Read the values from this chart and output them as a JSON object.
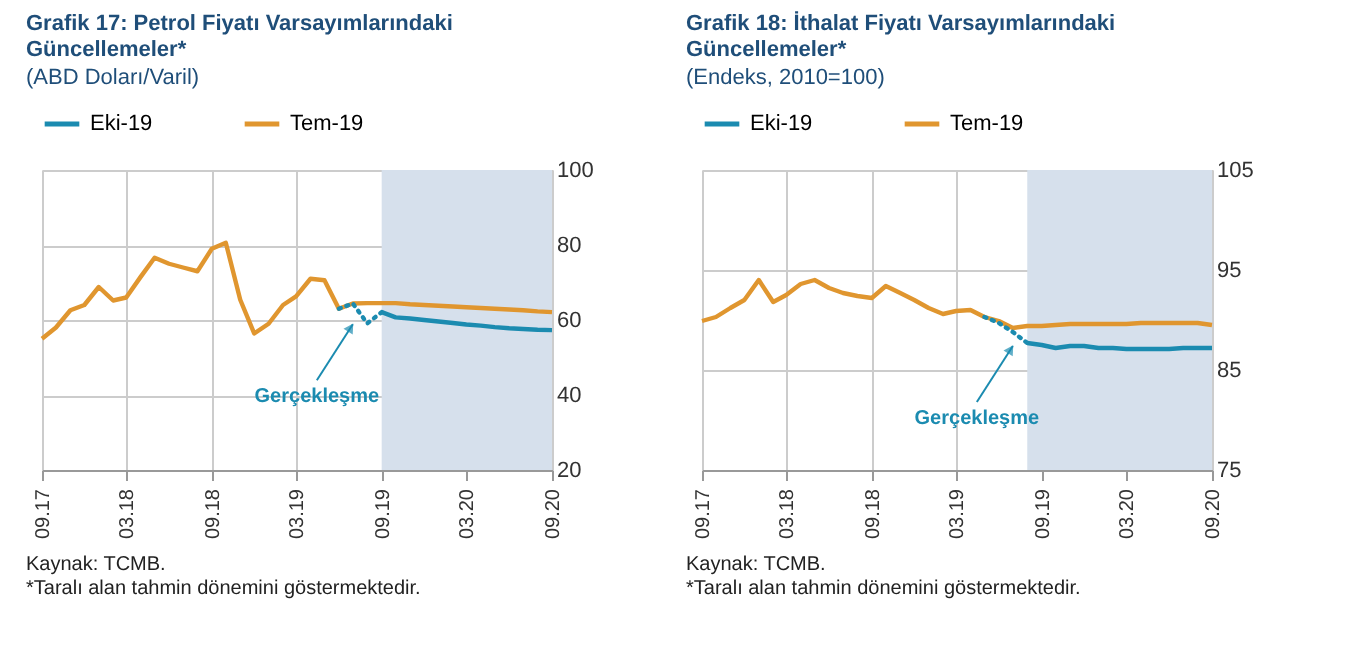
{
  "chart_data": [
    {
      "type": "line",
      "title": "Grafik 17: Petrol Fiyatı Varsayımlarındaki Güncellemeler*",
      "subtitle": "(ABD Doları/Varil)",
      "x": [
        "2017-09",
        "2017-10",
        "2017-11",
        "2017-12",
        "2018-01",
        "2018-02",
        "2018-03",
        "2018-04",
        "2018-05",
        "2018-06",
        "2018-07",
        "2018-08",
        "2018-09",
        "2018-10",
        "2018-11",
        "2018-12",
        "2019-01",
        "2019-02",
        "2019-03",
        "2019-04",
        "2019-05",
        "2019-06",
        "2019-07",
        "2019-08",
        "2019-09",
        "2019-10",
        "2019-11",
        "2019-12",
        "2020-01",
        "2020-02",
        "2020-03",
        "2020-04",
        "2020-05",
        "2020-06",
        "2020-07",
        "2020-08",
        "2020-09"
      ],
      "series": [
        {
          "name": "Eki-19",
          "color": "#1b8bb0",
          "x": [
            "2019-09",
            "2019-10",
            "2019-11",
            "2019-12",
            "2020-01",
            "2020-02",
            "2020-03",
            "2020-04",
            "2020-05",
            "2020-06",
            "2020-07",
            "2020-08",
            "2020-09"
          ],
          "values": [
            62.1,
            60.7,
            60.4,
            60.0,
            59.6,
            59.2,
            58.8,
            58.5,
            58.1,
            57.8,
            57.6,
            57.4,
            57.3
          ]
        },
        {
          "name": "Tem-19",
          "color": "#e0962f",
          "values": [
            55,
            58,
            62.6,
            64,
            68.8,
            65.2,
            66,
            71.5,
            76.6,
            75,
            74,
            73,
            79,
            80.6,
            65.4,
            56.4,
            59,
            64,
            66.3,
            71,
            70.6,
            63,
            64.4,
            64.5,
            64.5,
            64.5,
            64.2,
            64.0,
            63.8,
            63.6,
            63.4,
            63.2,
            63.0,
            62.8,
            62.6,
            62.3,
            62.1
          ]
        },
        {
          "color": "#1b8bb0",
          "line_style": "dotted",
          "x": [
            "2019-06",
            "2019-07",
            "2019-08",
            "2019-09"
          ],
          "values": [
            63,
            64.4,
            59.1,
            62.1
          ]
        }
      ],
      "xlim": [
        "2017-09",
        "2020-09"
      ],
      "xticks": [
        {
          "value": "2017-09",
          "label": "09.17"
        },
        {
          "value": "2018-03",
          "label": "03.18"
        },
        {
          "value": "2018-09",
          "label": "09.18"
        },
        {
          "value": "2019-03",
          "label": "03.19"
        },
        {
          "value": "2019-09",
          "label": "09.19"
        },
        {
          "value": "2020-03",
          "label": "03.20"
        },
        {
          "value": "2020-09",
          "label": "09.20"
        }
      ],
      "ylim": [
        20,
        100
      ],
      "yticks": [
        20,
        40,
        60,
        80,
        100
      ],
      "grid": true,
      "legend": "top",
      "bands": [
        {
          "axis": "x",
          "from": "2019-09",
          "to": "2020-09",
          "color": "#d6e0ec"
        }
      ],
      "annotations": [
        {
          "text": "Gerçekleşme",
          "x": "2019-07",
          "y": 61
        },
        "Kaynak: TCMB.",
        "*Taralı alan tahmin dönemini göstermektedir."
      ]
    },
    {
      "type": "line",
      "title": "Grafik 18: İthalat Fiyatı Varsayımlarındaki Güncellemeler*",
      "subtitle": "(Endeks, 2010=100)",
      "x": [
        "2017-09",
        "2017-10",
        "2017-11",
        "2017-12",
        "2018-01",
        "2018-02",
        "2018-03",
        "2018-04",
        "2018-05",
        "2018-06",
        "2018-07",
        "2018-08",
        "2018-09",
        "2018-10",
        "2018-11",
        "2018-12",
        "2019-01",
        "2019-02",
        "2019-03",
        "2019-04",
        "2019-05",
        "2019-06",
        "2019-07",
        "2019-08",
        "2019-09",
        "2019-10",
        "2019-11",
        "2019-12",
        "2020-01",
        "2020-02",
        "2020-03",
        "2020-04",
        "2020-05",
        "2020-06",
        "2020-07",
        "2020-08",
        "2020-09"
      ],
      "series": [
        {
          "name": "Eki-19",
          "color": "#1b8bb0",
          "x": [
            "2019-08",
            "2019-09",
            "2019-10",
            "2019-11",
            "2019-12",
            "2020-01",
            "2020-02",
            "2020-03",
            "2020-04",
            "2020-05",
            "2020-06",
            "2020-07",
            "2020-08",
            "2020-09"
          ],
          "values": [
            87.7,
            87.5,
            87.2,
            87.4,
            87.4,
            87.2,
            87.2,
            87.1,
            87.1,
            87.1,
            87.1,
            87.2,
            87.2,
            87.2
          ]
        },
        {
          "name": "Tem-19",
          "color": "#e0962f",
          "values": [
            89.9,
            90.3,
            91.2,
            92.0,
            94.0,
            91.8,
            92.5,
            93.6,
            94.0,
            93.2,
            92.7,
            92.4,
            92.2,
            93.4,
            92.7,
            92.0,
            91.2,
            90.6,
            90.9,
            91.0,
            90.3,
            89.9,
            89.2,
            89.4,
            89.4,
            89.5,
            89.6,
            89.6,
            89.6,
            89.6,
            89.6,
            89.7,
            89.7,
            89.7,
            89.7,
            89.7,
            89.5
          ]
        },
        {
          "color": "#1b8bb0",
          "line_style": "dotted",
          "x": [
            "2019-05",
            "2019-06",
            "2019-07",
            "2019-08"
          ],
          "values": [
            90.3,
            89.7,
            88.8,
            87.7
          ]
        }
      ],
      "xlim": [
        "2017-09",
        "2020-09"
      ],
      "xticks": [
        {
          "value": "2017-09",
          "label": "09.17"
        },
        {
          "value": "2018-03",
          "label": "03.18"
        },
        {
          "value": "2018-09",
          "label": "09.18"
        },
        {
          "value": "2019-03",
          "label": "03.19"
        },
        {
          "value": "2019-09",
          "label": "09.19"
        },
        {
          "value": "2020-03",
          "label": "03.20"
        },
        {
          "value": "2020-09",
          "label": "09.20"
        }
      ],
      "ylim": [
        75,
        105
      ],
      "yticks": [
        75,
        85,
        95,
        105
      ],
      "grid": true,
      "legend": "top",
      "bands": [
        {
          "axis": "x",
          "from": "2019-08",
          "to": "2020-09",
          "color": "#d6e0ec"
        }
      ],
      "annotations": [
        {
          "text": "Gerçekleşme",
          "x": "2019-07",
          "y": 88.2
        },
        "Kaynak: TCMB.",
        "*Taralı alan tahmin dönemini göstermektedir."
      ]
    }
  ]
}
